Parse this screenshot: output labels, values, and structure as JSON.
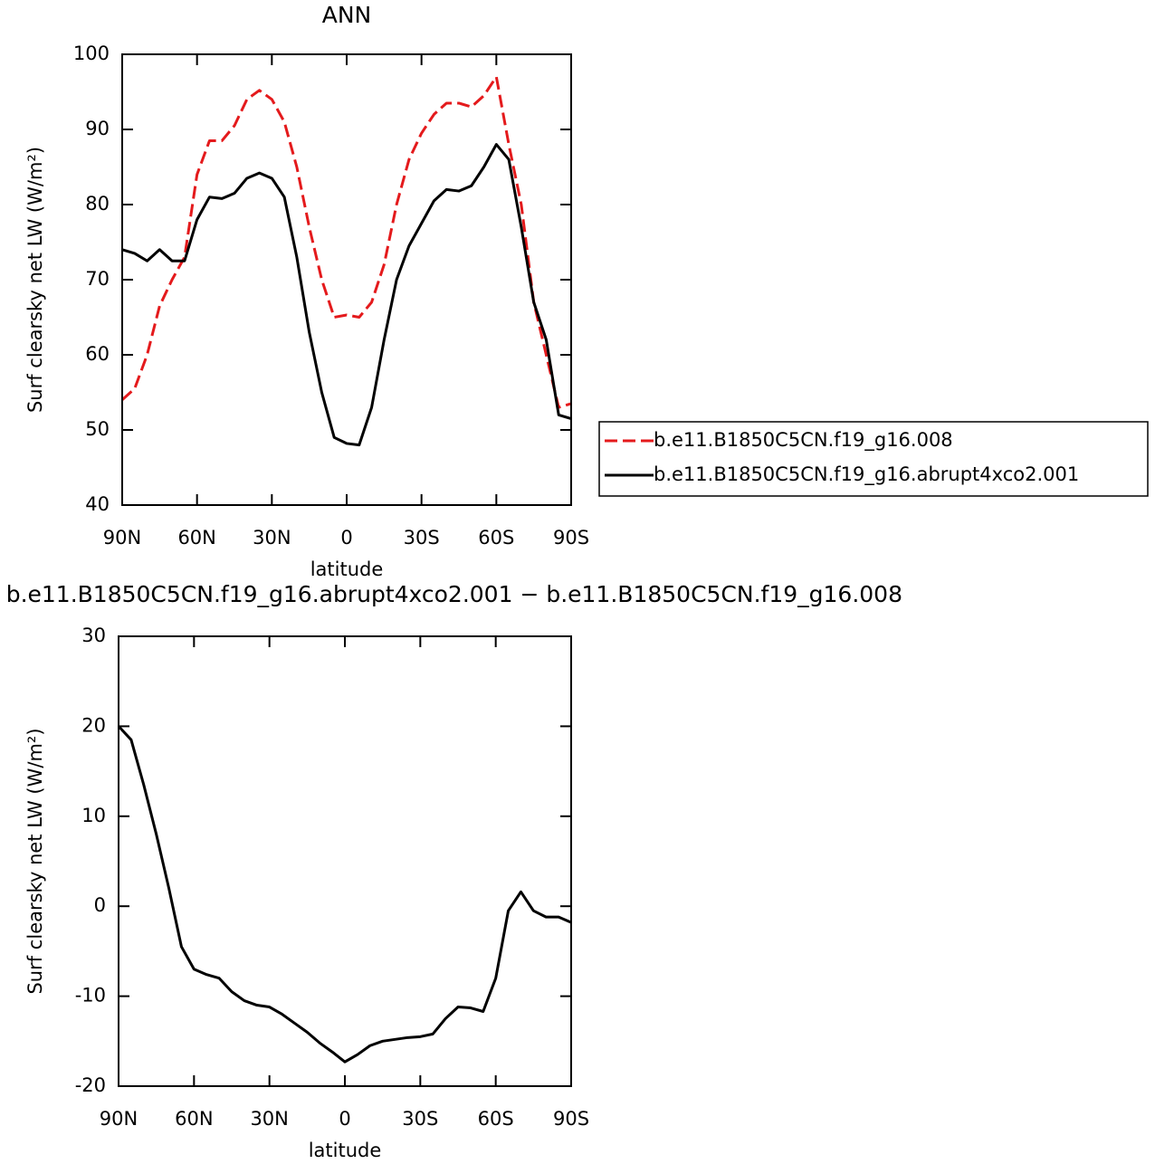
{
  "chart_data": [
    {
      "type": "line",
      "title": "ANN",
      "xlabel": "latitude",
      "ylabel": "Surf clearsky net LW (W/m²)",
      "x": [
        90,
        85,
        80,
        75,
        70,
        65,
        60,
        55,
        50,
        45,
        40,
        35,
        30,
        25,
        20,
        15,
        10,
        5,
        0,
        -5,
        -10,
        -15,
        -20,
        -25,
        -30,
        -35,
        -40,
        -45,
        -50,
        -55,
        -60,
        -65,
        -70,
        -75,
        -80,
        -85,
        -90
      ],
      "xlim": [
        90,
        -90
      ],
      "xticks": [
        {
          "value": 90,
          "label": "90N"
        },
        {
          "value": 60,
          "label": "60N"
        },
        {
          "value": 30,
          "label": "30N"
        },
        0,
        {
          "value": -30,
          "label": "30S"
        },
        {
          "value": -60,
          "label": "60S"
        },
        {
          "value": -90,
          "label": "90S"
        }
      ],
      "ylim": [
        40,
        100
      ],
      "yticks": [
        40,
        50,
        60,
        70,
        80,
        90,
        100
      ],
      "series": [
        {
          "name": "b.e11.B1850C5CN.f19_g16.008",
          "color": "#e41a1c",
          "dash": true,
          "values": [
            54,
            55.5,
            60,
            66.5,
            70,
            73,
            84,
            88.5,
            88.5,
            90.5,
            94,
            95.2,
            94,
            91,
            85,
            77,
            70,
            65,
            65.3,
            65,
            67,
            72,
            80,
            86,
            89.5,
            92,
            93.5,
            93.5,
            93,
            94.5,
            97,
            88,
            80,
            67,
            60,
            53,
            53.5
          ]
        },
        {
          "name": "b.e11.B1850C5CN.f19_g16.abrupt4xco2.001",
          "color": "#000000",
          "dash": false,
          "values": [
            74,
            73.5,
            72.5,
            74,
            72.5,
            72.5,
            78,
            81,
            80.8,
            81.5,
            83.5,
            84.2,
            83.5,
            81,
            73,
            63,
            55,
            49,
            48.2,
            48,
            53,
            62,
            70,
            74.5,
            77.5,
            80.5,
            82,
            81.8,
            82.5,
            85,
            88,
            86,
            77,
            67,
            62,
            52,
            51.5
          ]
        }
      ]
    },
    {
      "type": "line",
      "title": "b.e11.B1850C5CN.f19_g16.abrupt4xco2.001 − b.e11.B1850C5CN.f19_g16.008",
      "xlabel": "latitude",
      "ylabel": "Surf clearsky net LW (W/m²)",
      "x": [
        90,
        85,
        80,
        75,
        70,
        65,
        60,
        55,
        50,
        45,
        40,
        35,
        30,
        25,
        20,
        15,
        10,
        5,
        0,
        -5,
        -10,
        -15,
        -20,
        -25,
        -30,
        -35,
        -40,
        -45,
        -50,
        -55,
        -60,
        -65,
        -70,
        -75,
        -80,
        -85,
        -90
      ],
      "xlim": [
        90,
        -90
      ],
      "xticks": [
        {
          "value": 90,
          "label": "90N"
        },
        {
          "value": 60,
          "label": "60N"
        },
        {
          "value": 30,
          "label": "30N"
        },
        0,
        {
          "value": -30,
          "label": "30S"
        },
        {
          "value": -60,
          "label": "60S"
        },
        {
          "value": -90,
          "label": "90S"
        }
      ],
      "ylim": [
        -20,
        30
      ],
      "yticks": [
        -20,
        -10,
        0,
        10,
        20,
        30
      ],
      "series": [
        {
          "color": "#000000",
          "dash": false,
          "values": [
            20,
            18.5,
            13.5,
            8,
            2,
            -4.5,
            -7,
            -7.6,
            -8,
            -9.5,
            -10.5,
            -11,
            -11.2,
            -12,
            -13,
            -14,
            -15.2,
            -16.2,
            -17.3,
            -16.5,
            -15.5,
            -15,
            -14.8,
            -14.6,
            -14.5,
            -14.2,
            -12.5,
            -11.2,
            -11.3,
            -11.7,
            -8,
            -0.5,
            1.6,
            -0.5,
            -1.2,
            -1.2,
            -1.8
          ]
        }
      ]
    }
  ]
}
